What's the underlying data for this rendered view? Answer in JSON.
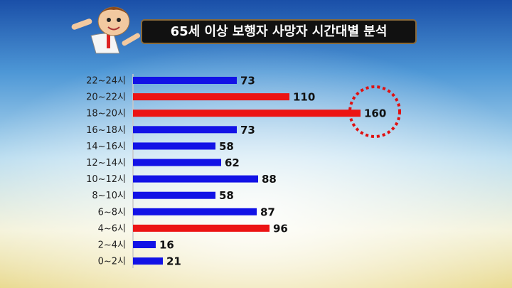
{
  "chart_data": {
    "type": "hbar",
    "title": "65세 이상 보행자 사망자 시간대별 분석",
    "categories": [
      "22~24시",
      "20~22시",
      "18~20시",
      "16~18시",
      "14~16시",
      "12~14시",
      "10~12시",
      "8~10시",
      "6~8시",
      "4~6시",
      "2~4시",
      "0~2시"
    ],
    "values": [
      73,
      110,
      160,
      73,
      58,
      62,
      88,
      58,
      87,
      96,
      16,
      21
    ],
    "colors": [
      "#1212e6",
      "#ec1414",
      "#ec1414",
      "#1212e6",
      "#1212e6",
      "#1212e6",
      "#1212e6",
      "#1212e6",
      "#1212e6",
      "#ec1414",
      "#1212e6",
      "#1212e6"
    ]
  }
}
